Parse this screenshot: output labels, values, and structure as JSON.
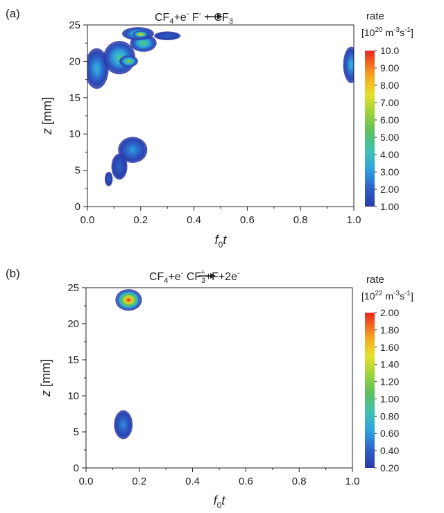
{
  "chart_data": [
    {
      "panel_label": "(a)",
      "type": "heatmap",
      "title_parts": {
        "a": "CF",
        "a_sub": "4",
        "b": "+e",
        "b_sup": "-",
        "c": "F",
        "c_sup": "-",
        "d": " + CF",
        "d_sub": "3"
      },
      "xlabel_main": "f",
      "xlabel_sub": "0",
      "xlabel_tail": "t",
      "ylabel_main": "z",
      "ylabel_tail": " [mm]",
      "xlim": [
        0,
        1
      ],
      "ylim": [
        0,
        25
      ],
      "x_ticks": [
        "0.0",
        "0.2",
        "0.4",
        "0.6",
        "0.8",
        "1.0"
      ],
      "y_ticks": [
        "0",
        "5",
        "10",
        "15",
        "20",
        "25"
      ],
      "colorbar": {
        "label": "rate",
        "unit_parts": {
          "a": "[10",
          "a_sup": "20",
          "b": " m",
          "b_sup": "-3",
          "c": "s",
          "c_sup": "-1",
          "d": "]"
        },
        "range": [
          1.0,
          10.0
        ],
        "ticks": [
          "10.0",
          "9.00",
          "8.00",
          "7.00",
          "6.00",
          "5.00",
          "4.00",
          "3.00",
          "2.00",
          "1.00"
        ]
      },
      "regions": [
        {
          "x": 0.035,
          "y": 19.0,
          "rx": 0.045,
          "ry": 2.8,
          "peak": 3.5
        },
        {
          "x": 0.12,
          "y": 20.5,
          "rx": 0.06,
          "ry": 2.3,
          "peak": 4.5
        },
        {
          "x": 0.155,
          "y": 20.0,
          "rx": 0.035,
          "ry": 0.8,
          "peak": 6.0
        },
        {
          "x": 0.21,
          "y": 22.5,
          "rx": 0.05,
          "ry": 1.2,
          "peak": 5.0
        },
        {
          "x": 0.19,
          "y": 23.8,
          "rx": 0.06,
          "ry": 0.9,
          "peak": 4.5
        },
        {
          "x": 0.2,
          "y": 23.7,
          "rx": 0.03,
          "ry": 0.5,
          "peak": 8.0
        },
        {
          "x": 0.3,
          "y": 23.5,
          "rx": 0.05,
          "ry": 0.6,
          "peak": 2.0
        },
        {
          "x": 0.17,
          "y": 7.8,
          "rx": 0.055,
          "ry": 1.8,
          "peak": 3.0
        },
        {
          "x": 0.12,
          "y": 5.5,
          "rx": 0.03,
          "ry": 1.8,
          "peak": 2.0
        },
        {
          "x": 0.08,
          "y": 3.8,
          "rx": 0.015,
          "ry": 1.0,
          "peak": 1.8
        },
        {
          "x": 0.99,
          "y": 19.5,
          "rx": 0.03,
          "ry": 2.5,
          "peak": 3.5
        }
      ]
    },
    {
      "panel_label": "(b)",
      "type": "heatmap",
      "title_parts": {
        "a": "CF",
        "a_sub": "4",
        "b": "+e",
        "b_sup": "-",
        "c": "CF",
        "c_sub": "3",
        "c_sup": "+",
        "d": "+F+2e",
        "d_sup": "-"
      },
      "xlabel_main": "f",
      "xlabel_sub": "0",
      "xlabel_tail": "t",
      "ylabel_main": "z",
      "ylabel_tail": " [mm]",
      "xlim": [
        0,
        1
      ],
      "ylim": [
        0,
        25
      ],
      "x_ticks": [
        "0.0",
        "0.2",
        "0.4",
        "0.6",
        "0.8",
        "1.0"
      ],
      "y_ticks": [
        "0",
        "5",
        "10",
        "15",
        "20",
        "25"
      ],
      "colorbar": {
        "label": "rate",
        "unit_parts": {
          "a": "[10",
          "a_sup": "22",
          "b": " m",
          "b_sup": "-3",
          "c": "s",
          "c_sup": "-1",
          "d": "]"
        },
        "range": [
          0.2,
          2.0
        ],
        "ticks": [
          "2.00",
          "1.80",
          "1.60",
          "1.40",
          "1.20",
          "1.00",
          "0.80",
          "0.60",
          "0.40",
          "0.20"
        ]
      },
      "regions": [
        {
          "x": 0.16,
          "y": 23.3,
          "rx": 0.05,
          "ry": 1.5,
          "peak": 1.95
        },
        {
          "x": 0.14,
          "y": 6.0,
          "rx": 0.035,
          "ry": 2.0,
          "peak": 0.55
        }
      ]
    }
  ]
}
